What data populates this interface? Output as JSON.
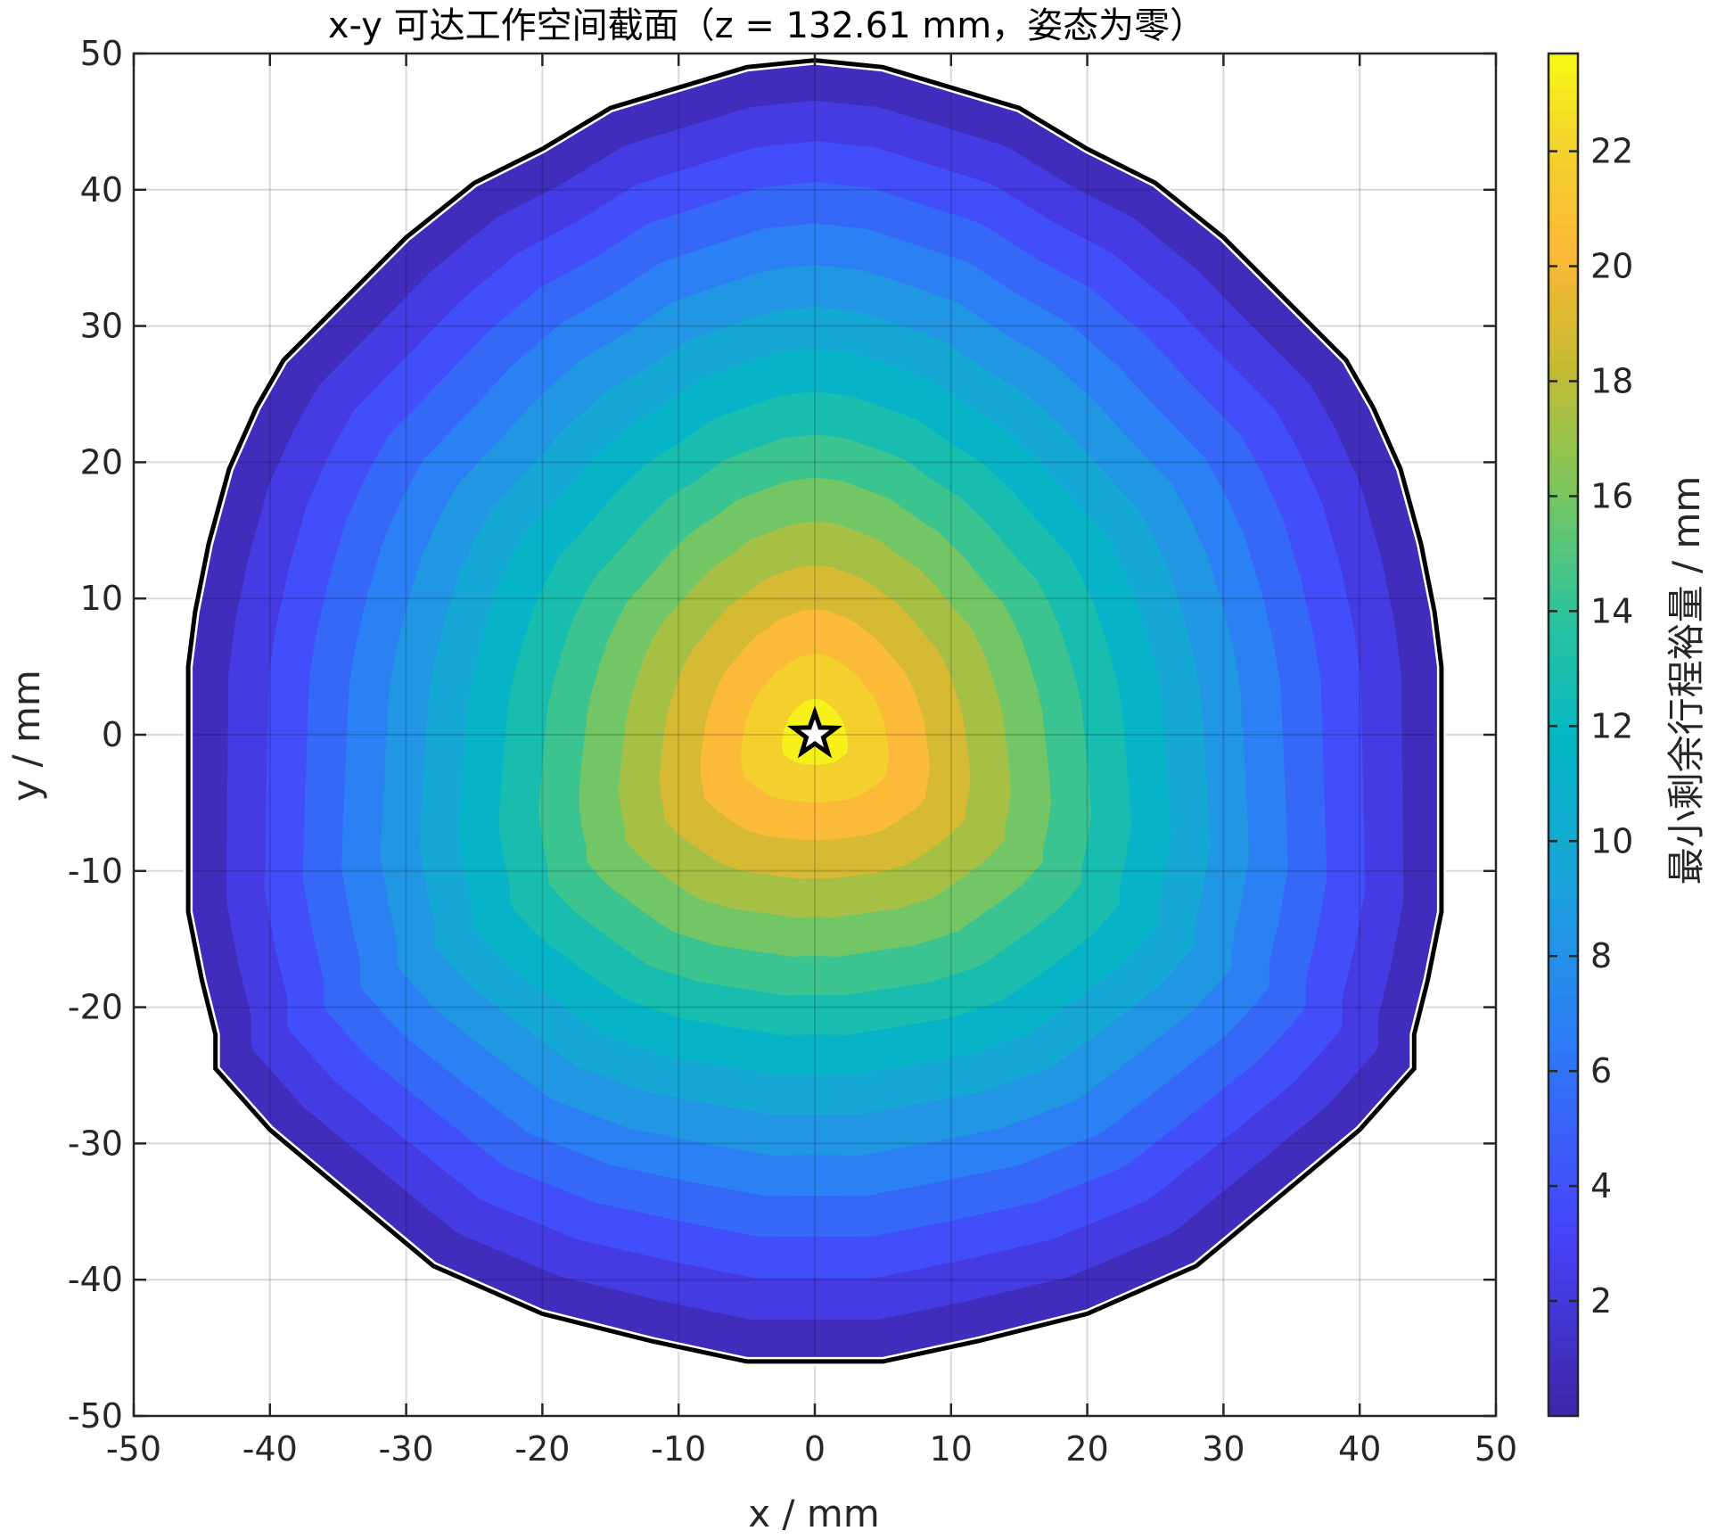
{
  "chart_data": {
    "type": "heatmap",
    "title": "x-y 可达工作空间截面（z = 132.61 mm，姿态为零）",
    "xlabel": "x / mm",
    "ylabel": "y / mm",
    "xlim": [
      -50,
      50
    ],
    "ylim": [
      -50,
      50
    ],
    "x_ticks": [
      -50,
      -40,
      -30,
      -20,
      -10,
      0,
      10,
      20,
      30,
      40,
      50
    ],
    "y_ticks": [
      -50,
      -40,
      -30,
      -20,
      -10,
      0,
      10,
      20,
      30,
      40,
      50
    ],
    "grid": true,
    "colorbar": {
      "label": "最小剩余行程裕量 / mm",
      "range": [
        0,
        23.7
      ],
      "ticks": [
        2,
        4,
        6,
        8,
        10,
        12,
        14,
        16,
        18,
        20,
        22
      ],
      "colormap": "parula"
    },
    "levels": [
      0,
      1.5,
      3,
      4.5,
      6,
      7.5,
      9,
      10.5,
      12,
      13.5,
      15,
      16.5,
      18,
      19.5,
      21,
      22.5
    ],
    "max_value": 23.7,
    "max_point": [
      0,
      0
    ],
    "marker": "star",
    "boundary_polygon": [
      [
        0,
        49.5
      ],
      [
        -5,
        49
      ],
      [
        -10,
        47.5
      ],
      [
        -15,
        46
      ],
      [
        -20,
        43
      ],
      [
        -25,
        40.5
      ],
      [
        -30,
        36.5
      ],
      [
        -35,
        31.5
      ],
      [
        -39,
        27.5
      ],
      [
        -41,
        24
      ],
      [
        -43,
        19.5
      ],
      [
        -44.5,
        14
      ],
      [
        -45.5,
        9
      ],
      [
        -46,
        5
      ],
      [
        -46,
        -13
      ],
      [
        -45,
        -18
      ],
      [
        -44,
        -22
      ],
      [
        -44,
        -24.5
      ],
      [
        -40,
        -29
      ],
      [
        -34,
        -34
      ],
      [
        -28,
        -39
      ],
      [
        -20,
        -42.5
      ],
      [
        -12,
        -44.5
      ],
      [
        -5,
        -46
      ],
      [
        5,
        -46
      ],
      [
        12,
        -44.5
      ],
      [
        20,
        -42.5
      ],
      [
        28,
        -39
      ],
      [
        34,
        -34
      ],
      [
        40,
        -29
      ],
      [
        44,
        -24.5
      ],
      [
        44,
        -22
      ],
      [
        45,
        -18
      ],
      [
        46,
        -13
      ],
      [
        46,
        5
      ],
      [
        45.5,
        9
      ],
      [
        44.5,
        14
      ],
      [
        43,
        19.5
      ],
      [
        41,
        24
      ],
      [
        39,
        27.5
      ],
      [
        35,
        31.5
      ],
      [
        30,
        36.5
      ],
      [
        25,
        40.5
      ],
      [
        20,
        43
      ],
      [
        15,
        46
      ],
      [
        10,
        47.5
      ],
      [
        5,
        49
      ]
    ],
    "sample_contours": [
      {
        "level": 3,
        "points": [
          [
            0,
            44
          ],
          [
            -9,
            41
          ],
          [
            -17,
            37
          ],
          [
            -27,
            30
          ],
          [
            -36,
            21
          ],
          [
            -40,
            10
          ],
          [
            -41,
            0
          ],
          [
            -40,
            -11
          ],
          [
            -38,
            -20
          ],
          [
            -31,
            -28
          ],
          [
            -22,
            -35
          ],
          [
            -11,
            -39.5
          ],
          [
            0,
            -41
          ],
          [
            11,
            -39.5
          ],
          [
            22,
            -35
          ],
          [
            31,
            -28
          ],
          [
            38,
            -20
          ],
          [
            40,
            -11
          ],
          [
            41,
            0
          ],
          [
            40,
            10
          ],
          [
            36,
            21
          ],
          [
            27,
            30
          ],
          [
            17,
            37
          ],
          [
            9,
            41
          ]
        ]
      },
      {
        "level": 12,
        "points": [
          [
            0,
            30
          ],
          [
            -8,
            26
          ],
          [
            -16,
            20
          ],
          [
            -24,
            12
          ],
          [
            -28,
            1
          ],
          [
            -27,
            -8
          ],
          [
            -21,
            -16
          ],
          [
            -11,
            -22
          ],
          [
            0,
            -23
          ],
          [
            11,
            -22
          ],
          [
            21,
            -16
          ],
          [
            27,
            -8
          ],
          [
            28,
            1
          ],
          [
            24,
            12
          ],
          [
            16,
            20
          ],
          [
            8,
            26
          ]
        ]
      },
      {
        "level": 20.5,
        "points": [
          [
            0,
            13
          ],
          [
            -7,
            9
          ],
          [
            -13,
            3
          ],
          [
            -14,
            -3
          ],
          [
            -11,
            -9
          ],
          [
            -5,
            -11
          ],
          [
            0,
            -12
          ],
          [
            5,
            -11
          ],
          [
            11,
            -9
          ],
          [
            14,
            -3
          ],
          [
            13,
            3
          ],
          [
            7,
            9
          ]
        ]
      },
      {
        "level": 23,
        "points": [
          [
            0,
            7.5
          ],
          [
            -3,
            5.5
          ],
          [
            -6,
            2
          ],
          [
            -6.5,
            -3
          ],
          [
            -4,
            -4
          ],
          [
            0,
            -5.5
          ],
          [
            4,
            -4.5
          ],
          [
            6.5,
            -3
          ],
          [
            6,
            2
          ],
          [
            3,
            5.5
          ]
        ]
      }
    ]
  }
}
